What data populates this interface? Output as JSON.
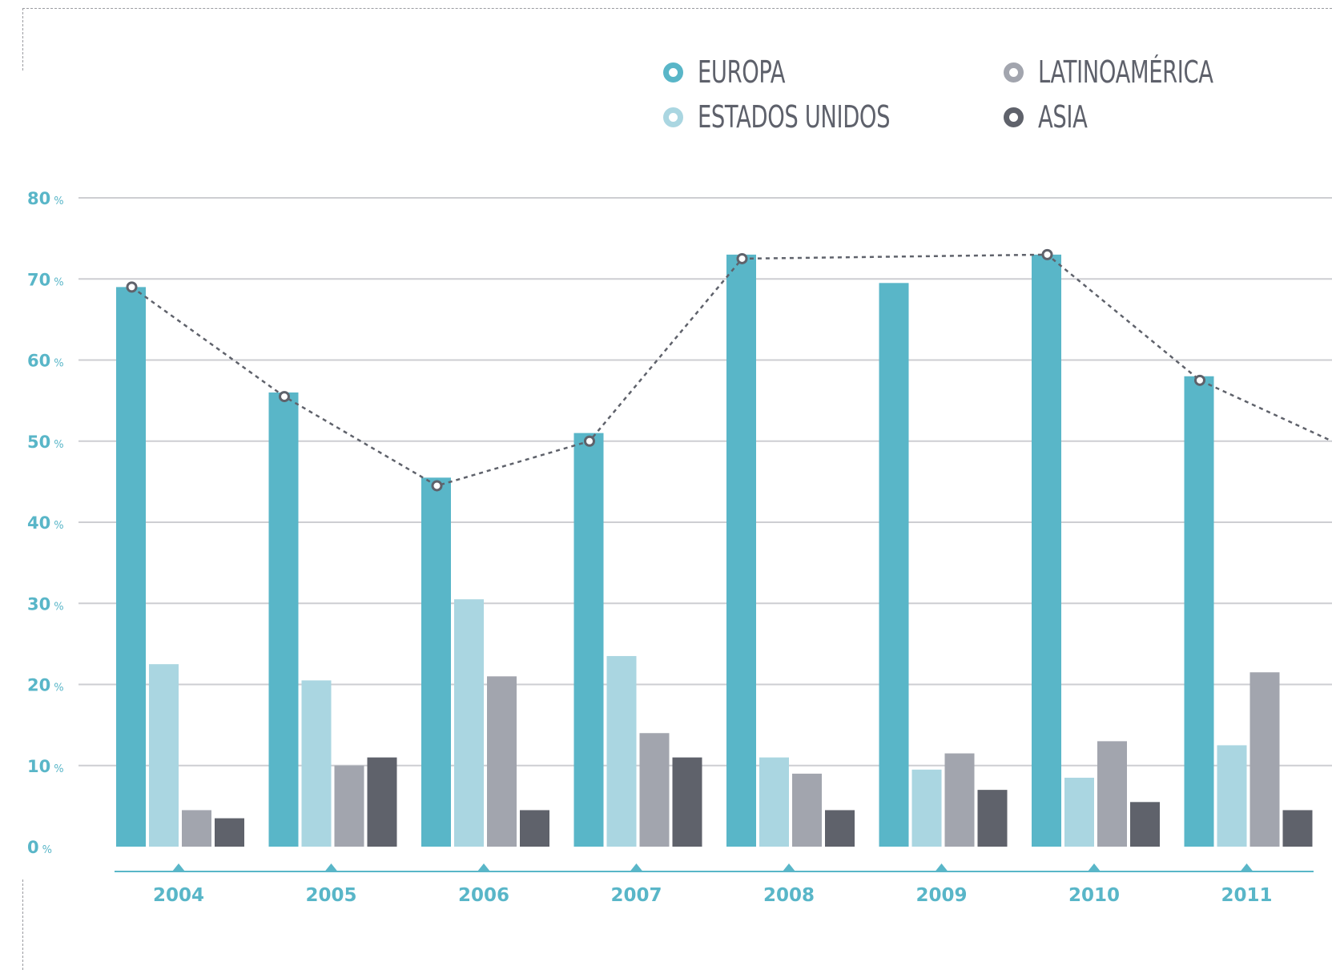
{
  "colors": {
    "europa": "#59b6c8",
    "estados_unidos": "#aad6e1",
    "latinoamerica": "#a2a5ae",
    "asia": "#5f626b",
    "grid": "#cdced2",
    "axis": "#59b6c8",
    "trend": "#5f626b"
  },
  "legend": [
    {
      "key": "europa",
      "label": "EUROPA",
      "color": "#59b6c8"
    },
    {
      "key": "latinoamerica",
      "label": "LATINOAMÉRICA",
      "color": "#a2a5ae"
    },
    {
      "key": "estados_unidos",
      "label": "ESTADOS UNIDOS",
      "color": "#aad6e1"
    },
    {
      "key": "asia",
      "label": "ASIA",
      "color": "#5f626b"
    }
  ],
  "chart_data": {
    "type": "bar",
    "categories": [
      "2004",
      "2005",
      "2006",
      "2007",
      "2008",
      "2009",
      "2010",
      "2011"
    ],
    "series": [
      {
        "name": "EUROPA",
        "color": "#59b6c8",
        "values": [
          69,
          56,
          45.5,
          51,
          73,
          69.5,
          73,
          58
        ]
      },
      {
        "name": "ESTADOS UNIDOS",
        "color": "#aad6e1",
        "values": [
          22.5,
          20.5,
          30.5,
          23.5,
          11,
          9.5,
          8.5,
          12.5
        ]
      },
      {
        "name": "LATINOAMÉRICA",
        "color": "#a2a5ae",
        "values": [
          4.5,
          10,
          21,
          14,
          9,
          11.5,
          13,
          21.5
        ]
      },
      {
        "name": "ASIA",
        "color": "#5f626b",
        "values": [
          3.5,
          11,
          4.5,
          11,
          4.5,
          7,
          5.5,
          4.5
        ]
      }
    ],
    "trend_line": {
      "points": [
        {
          "x": "2004",
          "y": 69
        },
        {
          "x": "2005",
          "y": 55.5
        },
        {
          "x": "2006",
          "y": 44.5
        },
        {
          "x": "2007",
          "y": 50
        },
        {
          "x": "2008",
          "y": 72.5
        },
        {
          "x": "2010",
          "y": 73
        },
        {
          "x": "2011",
          "y": 57.5
        }
      ],
      "continues_to": 50,
      "style": "dashed"
    },
    "yticks": [
      {
        "value": 0,
        "label": "0",
        "unit": "%"
      },
      {
        "value": 10,
        "label": "10",
        "unit": "%"
      },
      {
        "value": 20,
        "label": "20",
        "unit": "%"
      },
      {
        "value": 30,
        "label": "30",
        "unit": "%"
      },
      {
        "value": 40,
        "label": "40",
        "unit": "%"
      },
      {
        "value": 50,
        "label": "50",
        "unit": "%"
      },
      {
        "value": 60,
        "label": "60",
        "unit": "%"
      },
      {
        "value": 70,
        "label": "70",
        "unit": "%"
      },
      {
        "value": 80,
        "label": "80",
        "unit": "%"
      }
    ],
    "ylim": [
      0,
      80
    ],
    "grid": true,
    "legend_position": "top-right"
  }
}
